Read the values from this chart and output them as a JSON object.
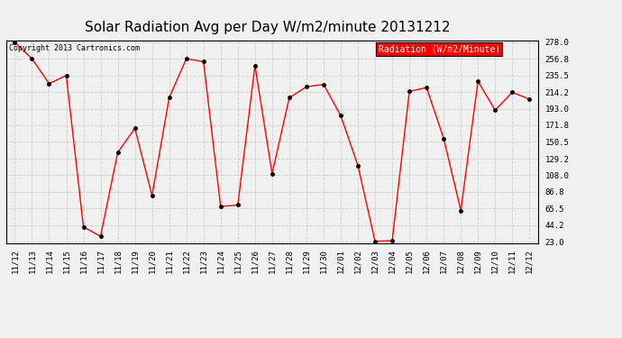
{
  "title": "Solar Radiation Avg per Day W/m2/minute 20131212",
  "copyright": "Copyright 2013 Cartronics.com",
  "legend_label": "Radiation (W/m2/Minute)",
  "dates": [
    "11/12",
    "11/13",
    "11/14",
    "11/15",
    "11/16",
    "11/17",
    "11/18",
    "11/19",
    "11/20",
    "11/21",
    "11/22",
    "11/23",
    "11/24",
    "11/25",
    "11/26",
    "11/27",
    "11/28",
    "11/29",
    "11/30",
    "12/01",
    "12/02",
    "12/03",
    "12/04",
    "12/05",
    "12/06",
    "12/07",
    "12/08",
    "12/09",
    "12/10",
    "12/11",
    "12/12"
  ],
  "values": [
    278.0,
    256.8,
    225.0,
    235.5,
    42.0,
    30.0,
    137.0,
    168.0,
    82.0,
    207.0,
    256.8,
    253.0,
    68.0,
    70.0,
    248.0,
    110.0,
    207.0,
    221.0,
    224.0,
    184.0,
    120.5,
    23.5,
    24.5,
    215.0,
    220.0,
    155.0,
    63.0,
    228.0,
    191.0,
    214.0,
    205.0
  ],
  "line_color": "red",
  "marker_color": "black",
  "bg_color": "#f0f0f0",
  "grid_color": "#cccccc",
  "yticks": [
    23.0,
    44.2,
    65.5,
    86.8,
    108.0,
    129.2,
    150.5,
    171.8,
    193.0,
    214.2,
    235.5,
    256.8,
    278.0
  ],
  "ymin": 23.0,
  "ymax": 278.0,
  "legend_bg": "red",
  "legend_text_color": "white",
  "title_fontsize": 11,
  "tick_fontsize": 6.5,
  "copyright_fontsize": 6,
  "legend_fontsize": 7
}
